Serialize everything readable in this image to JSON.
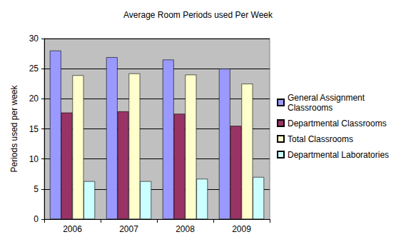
{
  "chart_data": {
    "type": "bar",
    "title": "Average Room Periods used Per Week",
    "y_label": "Periods used per week",
    "categories": [
      "2006",
      "2007",
      "2008",
      "2009"
    ],
    "series": [
      {
        "name": "General Assignment Classrooms",
        "color": "#9999ff",
        "values": [
          28,
          26.9,
          26.5,
          25
        ]
      },
      {
        "name": "Departmental Classrooms",
        "color": "#993366",
        "values": [
          17.7,
          17.9,
          17.5,
          15.5
        ]
      },
      {
        "name": "Total Classrooms",
        "color": "#ffffcc",
        "values": [
          23.9,
          24.2,
          24,
          22.5
        ]
      },
      {
        "name": "Departmental Laboratories",
        "color": "#ccffff",
        "values": [
          6.3,
          6.3,
          6.7,
          7
        ]
      }
    ],
    "ylim": [
      0,
      30
    ],
    "yticks": [
      0,
      5,
      10,
      15,
      20,
      25,
      30
    ],
    "grid": true,
    "legend": "right"
  }
}
